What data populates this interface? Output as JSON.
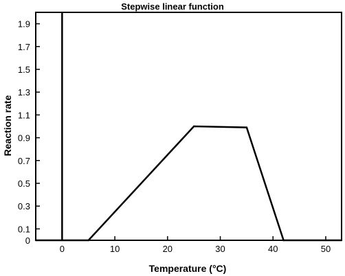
{
  "chart_data": {
    "type": "line",
    "title": "Stepwise linear function",
    "xlabel": "Temperature (°C)",
    "ylabel": "Reaction rate",
    "xlim": [
      -5,
      53
    ],
    "ylim": [
      0,
      2.0
    ],
    "xticks": [
      0,
      10,
      20,
      30,
      40,
      50
    ],
    "xtick_labels": [
      "0",
      "10",
      "20",
      "30",
      "40",
      "50"
    ],
    "yticks": [
      0,
      0.1,
      0.3,
      0.5,
      0.7,
      0.9,
      1.1,
      1.3,
      1.5,
      1.7,
      1.9
    ],
    "ytick_labels": [
      "0",
      "0.1",
      "0.3",
      "0.5",
      "0.7",
      "0.9",
      "1.1",
      "1.3",
      "1.5",
      "1.7",
      "1.9"
    ],
    "grid": false,
    "series": [
      {
        "x": [
          -5,
          5,
          25,
          35,
          42,
          53
        ],
        "values": [
          0,
          0,
          1.0,
          0.99,
          0,
          0
        ]
      }
    ],
    "reference_lines": [
      {
        "orientation": "vertical",
        "x": 0
      }
    ]
  }
}
